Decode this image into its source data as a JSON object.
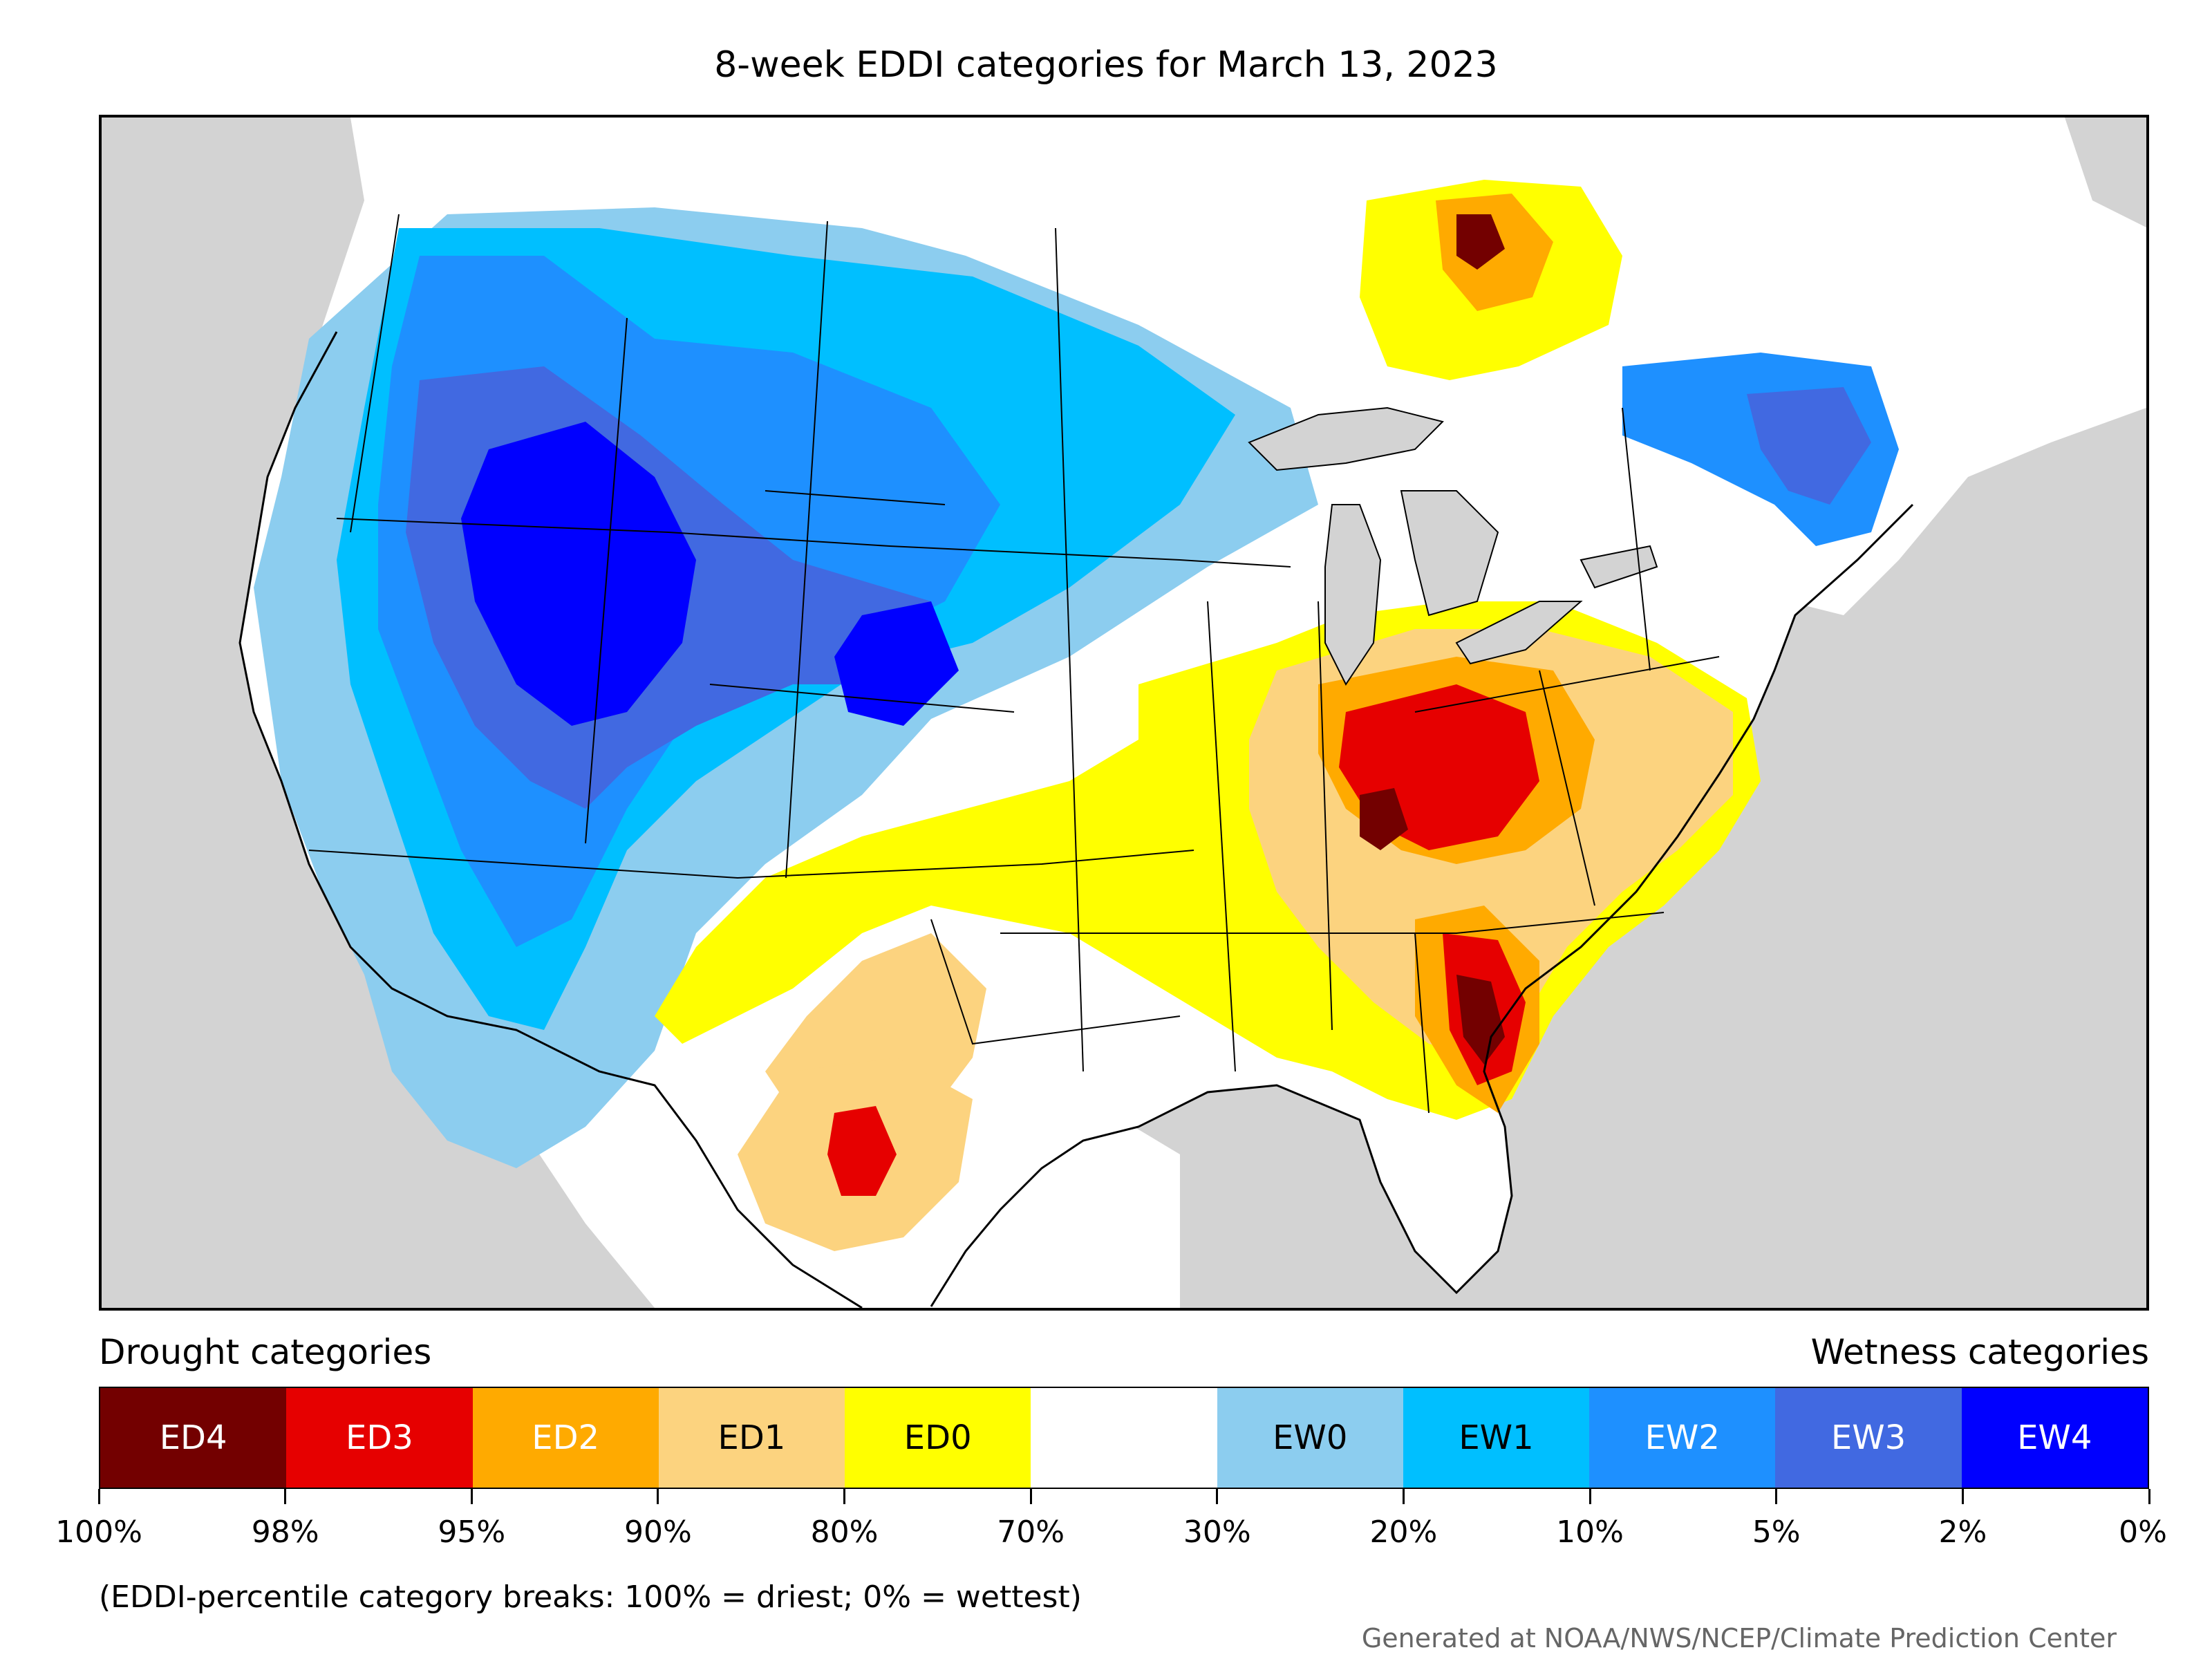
{
  "title": "8-week EDDI categories for March 13, 2023",
  "legend": {
    "drought_heading": "Drought categories",
    "wetness_heading": "Wetness categories",
    "categories": [
      {
        "label": "ED4",
        "color": "#730000",
        "text_color": "#ffffff"
      },
      {
        "label": "ED3",
        "color": "#e60000",
        "text_color": "#ffffff"
      },
      {
        "label": "ED2",
        "color": "#ffaa00",
        "text_color": "#ffffff"
      },
      {
        "label": "ED1",
        "color": "#fcd37f",
        "text_color": "#000000"
      },
      {
        "label": "ED0",
        "color": "#ffff00",
        "text_color": "#000000"
      },
      {
        "label": "",
        "color": "#ffffff",
        "text_color": "#000000"
      },
      {
        "label": "EW0",
        "color": "#8ccdef",
        "text_color": "#000000"
      },
      {
        "label": "EW1",
        "color": "#00bfff",
        "text_color": "#000000"
      },
      {
        "label": "EW2",
        "color": "#1e90ff",
        "text_color": "#ffffff"
      },
      {
        "label": "EW3",
        "color": "#4169e1",
        "text_color": "#ffffff"
      },
      {
        "label": "EW4",
        "color": "#0000ff",
        "text_color": "#ffffff"
      }
    ],
    "breaks": [
      "100%",
      "98%",
      "95%",
      "90%",
      "80%",
      "70%",
      "30%",
      "20%",
      "10%",
      "5%",
      "2%",
      "0%"
    ]
  },
  "footnote": "(EDDI-percentile category breaks: 100% = driest; 0% = wettest)",
  "credit": "Generated at NOAA/NWS/NCEP/Climate Prediction Center",
  "colors": {
    "background_land": "#d3d3d3",
    "ocean": "#d3d3d3",
    "lakes": "#d3d3d3"
  }
}
